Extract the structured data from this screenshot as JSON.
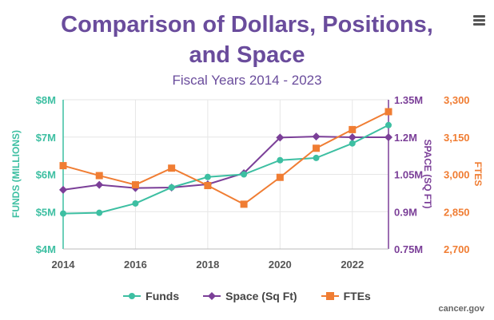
{
  "title_line1": "Comparison of Dollars, Positions,",
  "title_line2": "and Space",
  "subtitle": "Fiscal Years 2014 - 2023",
  "credit": "cancer.gov",
  "menu_icon": "hamburger-icon",
  "colors": {
    "title": "#6a4c9c",
    "funds": "#3dbfa2",
    "space": "#7b3f98",
    "ftes": "#f07d33",
    "grid": "#e6e6e6"
  },
  "chart_data": {
    "type": "line",
    "x": [
      2014,
      2015,
      2016,
      2017,
      2018,
      2019,
      2020,
      2021,
      2022,
      2023
    ],
    "x_ticks": [
      "2014",
      "2016",
      "2018",
      "2020",
      "2022"
    ],
    "xlim": [
      2014,
      2023
    ],
    "axes": {
      "funds": {
        "label": "FUNDS (MILLIONS)",
        "min": 4,
        "max": 8,
        "ticks": [
          "$4M",
          "$5M",
          "$6M",
          "$7M",
          "$8M"
        ]
      },
      "space": {
        "label": "SPACE (SQ FT)",
        "min": 0.75,
        "max": 1.35,
        "ticks": [
          "0.75M",
          "0.9M",
          "1.05M",
          "1.2M",
          "1.35M"
        ]
      },
      "ftes": {
        "label": "FTES",
        "min": 2700,
        "max": 3300,
        "ticks": [
          "2,700",
          "2,850",
          "3,000",
          "3,150",
          "3,300"
        ]
      }
    },
    "series": [
      {
        "name": "Funds",
        "axis": "funds",
        "values": [
          4.95,
          4.97,
          5.22,
          5.65,
          5.93,
          6.0,
          6.38,
          6.44,
          6.83,
          7.32
        ]
      },
      {
        "name": "Space (Sq Ft)",
        "axis": "space",
        "values": [
          0.988,
          1.008,
          0.995,
          0.997,
          1.01,
          1.055,
          1.198,
          1.202,
          1.199,
          1.199
        ]
      },
      {
        "name": "FTEs",
        "axis": "ftes",
        "values": [
          3035,
          2995,
          2958,
          3025,
          2955,
          2880,
          2988,
          3105,
          3180,
          3252
        ]
      }
    ],
    "grid": true,
    "legend_position": "bottom"
  }
}
